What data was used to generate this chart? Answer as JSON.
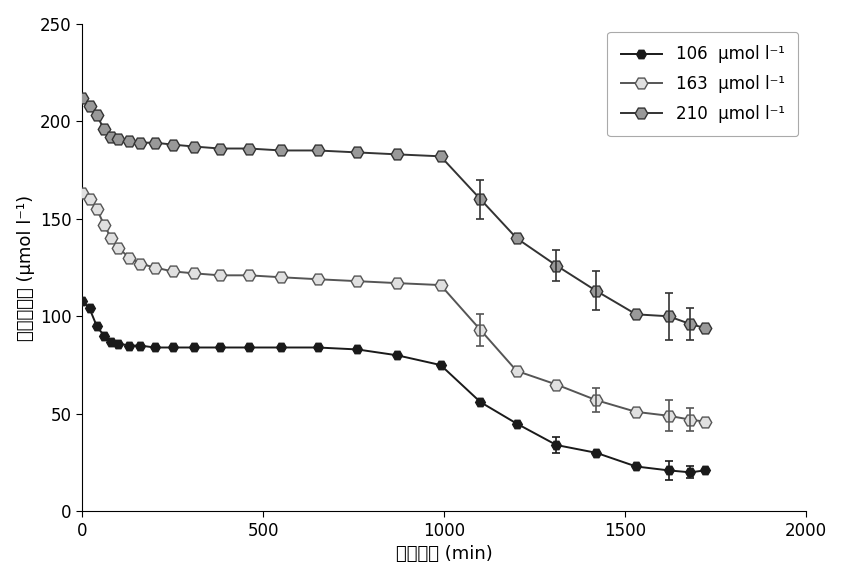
{
  "xlabel": "耗竭时间 (min)",
  "ylabel": "耗竭液浓度 (μmol l⁻¹)",
  "xlim": [
    0,
    2000
  ],
  "ylim": [
    0,
    250
  ],
  "xticks": [
    0,
    500,
    1000,
    1500,
    2000
  ],
  "yticks": [
    0,
    50,
    100,
    150,
    200,
    250
  ],
  "background_color": "#ffffff",
  "series": [
    {
      "label": "106  μmol l⁻¹",
      "color": "#1a1a1a",
      "marker": "H",
      "marker_face": "#1a1a1a",
      "marker_edge": "#1a1a1a",
      "marker_size": 7,
      "linewidth": 1.4,
      "x": [
        0,
        20,
        40,
        60,
        80,
        100,
        130,
        160,
        200,
        250,
        310,
        380,
        460,
        550,
        650,
        760,
        870,
        990,
        1100,
        1200,
        1310,
        1420,
        1530,
        1620,
        1680,
        1720
      ],
      "y": [
        108,
        104,
        95,
        90,
        87,
        86,
        85,
        85,
        84,
        84,
        84,
        84,
        84,
        84,
        84,
        83,
        80,
        75,
        56,
        45,
        34,
        30,
        23,
        21,
        20,
        21
      ],
      "yerr": [
        null,
        null,
        null,
        null,
        null,
        null,
        null,
        null,
        null,
        null,
        null,
        null,
        null,
        null,
        null,
        null,
        null,
        null,
        null,
        null,
        4,
        null,
        null,
        5,
        3,
        null
      ]
    },
    {
      "label": "163  μmol l⁻¹",
      "color": "#555555",
      "marker": "H",
      "marker_face": "#e0e0e0",
      "marker_edge": "#555555",
      "marker_size": 9,
      "linewidth": 1.4,
      "x": [
        0,
        20,
        40,
        60,
        80,
        100,
        130,
        160,
        200,
        250,
        310,
        380,
        460,
        550,
        650,
        760,
        870,
        990,
        1100,
        1200,
        1310,
        1420,
        1530,
        1620,
        1680,
        1720
      ],
      "y": [
        163,
        160,
        155,
        147,
        140,
        135,
        130,
        127,
        125,
        123,
        122,
        121,
        121,
        120,
        119,
        118,
        117,
        116,
        93,
        72,
        65,
        57,
        51,
        49,
        47,
        46
      ],
      "yerr": [
        null,
        null,
        null,
        null,
        null,
        null,
        null,
        null,
        null,
        null,
        null,
        null,
        null,
        null,
        null,
        null,
        null,
        null,
        8,
        null,
        null,
        6,
        null,
        8,
        6,
        null
      ]
    },
    {
      "label": "210  μmol l⁻¹",
      "color": "#333333",
      "marker": "H",
      "marker_face": "#999999",
      "marker_edge": "#333333",
      "marker_size": 9,
      "linewidth": 1.4,
      "x": [
        0,
        20,
        40,
        60,
        80,
        100,
        130,
        160,
        200,
        250,
        310,
        380,
        460,
        550,
        650,
        760,
        870,
        990,
        1100,
        1200,
        1310,
        1420,
        1530,
        1620,
        1680,
        1720
      ],
      "y": [
        212,
        208,
        203,
        196,
        192,
        191,
        190,
        189,
        189,
        188,
        187,
        186,
        186,
        185,
        185,
        184,
        183,
        182,
        160,
        140,
        126,
        113,
        101,
        100,
        96,
        94
      ],
      "yerr": [
        null,
        null,
        null,
        null,
        null,
        null,
        null,
        null,
        null,
        null,
        null,
        null,
        null,
        null,
        null,
        null,
        null,
        null,
        10,
        null,
        8,
        10,
        null,
        12,
        8,
        null
      ]
    }
  ],
  "legend_loc": "upper right",
  "font_size": 13,
  "tick_fontsize": 12,
  "label_fontsize": 13
}
